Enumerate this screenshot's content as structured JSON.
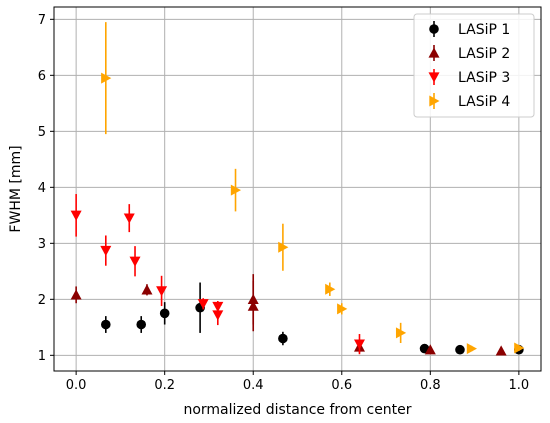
{
  "chart_data": {
    "type": "scatter",
    "title": "",
    "xlabel": "normalized distance from center",
    "ylabel": "FWHM [mm]",
    "xlim": [
      -0.05,
      1.05
    ],
    "ylim": [
      0.72,
      7.22
    ],
    "xticks": [
      0.0,
      0.2,
      0.4,
      0.6,
      0.8,
      1.0
    ],
    "xtick_labels": [
      "0.0",
      "0.2",
      "0.4",
      "0.6",
      "0.8",
      "1.0"
    ],
    "yticks": [
      1,
      2,
      3,
      4,
      5,
      6,
      7
    ],
    "ytick_labels": [
      "1",
      "2",
      "3",
      "4",
      "5",
      "6",
      "7"
    ],
    "grid": true,
    "legend_position": "top-right",
    "series": [
      {
        "name": "LASiP 1",
        "marker": "circle",
        "color": "#000000",
        "points": [
          {
            "x": 0.067,
            "y": 1.55,
            "err": 0.15
          },
          {
            "x": 0.147,
            "y": 1.55,
            "err": 0.15
          },
          {
            "x": 0.2,
            "y": 1.75,
            "err": 0.2
          },
          {
            "x": 0.28,
            "y": 1.85,
            "err": 0.45
          },
          {
            "x": 0.467,
            "y": 1.3,
            "err": 0.12
          },
          {
            "x": 0.787,
            "y": 1.12,
            "err": 0.05
          },
          {
            "x": 0.867,
            "y": 1.1,
            "err": 0.05
          },
          {
            "x": 1.0,
            "y": 1.1,
            "err": 0.05
          }
        ]
      },
      {
        "name": "LASiP 2",
        "marker": "triangle-up",
        "color": "#8b0000",
        "points": [
          {
            "x": 0.0,
            "y": 2.08,
            "err": 0.15
          },
          {
            "x": 0.16,
            "y": 2.17,
            "err": 0.1
          },
          {
            "x": 0.4,
            "y": 2.0,
            "err": 0.45
          },
          {
            "x": 0.4,
            "y": 1.88,
            "err": 0.45
          },
          {
            "x": 0.64,
            "y": 1.15,
            "err": 0.1
          },
          {
            "x": 0.8,
            "y": 1.1,
            "err": 0.05
          },
          {
            "x": 0.96,
            "y": 1.08,
            "err": 0.05
          }
        ]
      },
      {
        "name": "LASiP 3",
        "marker": "triangle-down",
        "color": "#ff0000",
        "points": [
          {
            "x": 0.0,
            "y": 3.5,
            "err": 0.38
          },
          {
            "x": 0.067,
            "y": 2.87,
            "err": 0.27
          },
          {
            "x": 0.12,
            "y": 3.45,
            "err": 0.25
          },
          {
            "x": 0.133,
            "y": 2.68,
            "err": 0.27
          },
          {
            "x": 0.193,
            "y": 2.15,
            "err": 0.27
          },
          {
            "x": 0.287,
            "y": 1.92,
            "err": 0.1
          },
          {
            "x": 0.32,
            "y": 1.87,
            "err": 0.1
          },
          {
            "x": 0.32,
            "y": 1.72,
            "err": 0.18
          },
          {
            "x": 0.64,
            "y": 1.2,
            "err": 0.18
          }
        ]
      },
      {
        "name": "LASiP 4",
        "marker": "triangle-right",
        "color": "#ffa500",
        "points": [
          {
            "x": 0.067,
            "y": 5.95,
            "err": 1.0
          },
          {
            "x": 0.36,
            "y": 3.95,
            "err": 0.38
          },
          {
            "x": 0.467,
            "y": 2.93,
            "err": 0.42
          },
          {
            "x": 0.573,
            "y": 2.18,
            "err": 0.12
          },
          {
            "x": 0.6,
            "y": 1.83,
            "err": 0.1
          },
          {
            "x": 0.733,
            "y": 1.4,
            "err": 0.18
          },
          {
            "x": 0.893,
            "y": 1.12,
            "err": 0.05
          },
          {
            "x": 1.0,
            "y": 1.13,
            "err": 0.05
          }
        ]
      }
    ]
  }
}
